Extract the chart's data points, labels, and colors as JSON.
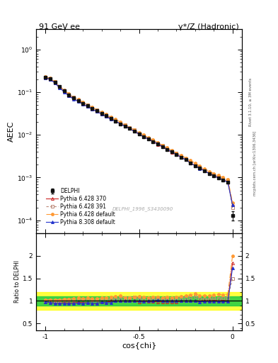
{
  "title_left": "91 GeV ee",
  "title_right": "γ*/Z (Hadronic)",
  "xlabel": "cos{chi}",
  "ylabel_main": "AEEC",
  "ylabel_ratio": "Ratio to DELPHI",
  "watermark": "DELPHI_1996_S3430090",
  "right_label_top": "Rivet 3.1.10, ≥ 3M events",
  "right_label_bot": "mcplots.cern.ch [arXiv:1306.3436]",
  "cos_chi": [
    -1.0,
    -0.975,
    -0.95,
    -0.925,
    -0.9,
    -0.875,
    -0.85,
    -0.825,
    -0.8,
    -0.775,
    -0.75,
    -0.725,
    -0.7,
    -0.675,
    -0.65,
    -0.625,
    -0.6,
    -0.575,
    -0.55,
    -0.525,
    -0.5,
    -0.475,
    -0.45,
    -0.425,
    -0.4,
    -0.375,
    -0.35,
    -0.325,
    -0.3,
    -0.275,
    -0.25,
    -0.225,
    -0.2,
    -0.175,
    -0.15,
    -0.125,
    -0.1,
    -0.075,
    -0.05,
    -0.025,
    0.0
  ],
  "delphi_y": [
    0.222,
    0.207,
    0.173,
    0.134,
    0.107,
    0.087,
    0.073,
    0.064,
    0.055,
    0.048,
    0.042,
    0.037,
    0.032,
    0.028,
    0.024,
    0.021,
    0.018,
    0.016,
    0.014,
    0.012,
    0.0105,
    0.0091,
    0.008,
    0.007,
    0.0061,
    0.0053,
    0.0046,
    0.004,
    0.0035,
    0.003,
    0.0026,
    0.0022,
    0.0019,
    0.00165,
    0.00145,
    0.00125,
    0.0011,
    0.00098,
    0.00088,
    0.00079,
    0.00013
  ],
  "delphi_err": [
    0.006,
    0.005,
    0.004,
    0.003,
    0.003,
    0.002,
    0.002,
    0.002,
    0.0015,
    0.0013,
    0.001,
    0.001,
    0.001,
    0.0008,
    0.0007,
    0.0006,
    0.0005,
    0.0004,
    0.0004,
    0.0003,
    0.0003,
    0.0003,
    0.0002,
    0.0002,
    0.0002,
    0.00015,
    0.00013,
    0.00011,
    0.0001,
    9e-05,
    8e-05,
    7e-05,
    6e-05,
    5e-05,
    5e-05,
    4e-05,
    4e-05,
    3e-05,
    3e-05,
    3e-05,
    3e-05
  ],
  "py6_370_y": [
    0.215,
    0.2,
    0.165,
    0.128,
    0.103,
    0.083,
    0.07,
    0.062,
    0.053,
    0.046,
    0.04,
    0.035,
    0.031,
    0.027,
    0.024,
    0.021,
    0.018,
    0.016,
    0.014,
    0.012,
    0.0103,
    0.009,
    0.0079,
    0.0069,
    0.006,
    0.0052,
    0.0045,
    0.0039,
    0.0034,
    0.003,
    0.0026,
    0.0022,
    0.0019,
    0.00166,
    0.00146,
    0.00126,
    0.00111,
    0.00099,
    0.00089,
    0.00079,
    0.00024
  ],
  "py6_391_y": [
    0.225,
    0.21,
    0.175,
    0.136,
    0.109,
    0.089,
    0.075,
    0.066,
    0.057,
    0.05,
    0.043,
    0.038,
    0.033,
    0.029,
    0.025,
    0.022,
    0.019,
    0.017,
    0.015,
    0.013,
    0.011,
    0.0096,
    0.0084,
    0.0073,
    0.0064,
    0.0056,
    0.0049,
    0.0042,
    0.0037,
    0.0032,
    0.0028,
    0.0024,
    0.0021,
    0.00175,
    0.0015,
    0.0013,
    0.00117,
    0.00104,
    0.00094,
    0.00085,
    0.000195
  ],
  "py6_def_y": [
    0.228,
    0.213,
    0.178,
    0.138,
    0.111,
    0.091,
    0.077,
    0.068,
    0.058,
    0.051,
    0.044,
    0.039,
    0.034,
    0.03,
    0.026,
    0.023,
    0.02,
    0.017,
    0.015,
    0.013,
    0.0115,
    0.0099,
    0.0086,
    0.0076,
    0.0066,
    0.0057,
    0.005,
    0.0043,
    0.0038,
    0.0033,
    0.0029,
    0.0025,
    0.0022,
    0.00185,
    0.00162,
    0.0014,
    0.00125,
    0.00112,
    0.001,
    0.00091,
    0.00026
  ],
  "py8_def_y": [
    0.218,
    0.2,
    0.164,
    0.127,
    0.101,
    0.082,
    0.069,
    0.061,
    0.052,
    0.046,
    0.04,
    0.035,
    0.031,
    0.027,
    0.023,
    0.021,
    0.018,
    0.016,
    0.014,
    0.012,
    0.0105,
    0.009,
    0.008,
    0.007,
    0.0062,
    0.0053,
    0.0046,
    0.004,
    0.0035,
    0.003,
    0.0026,
    0.0022,
    0.0019,
    0.00162,
    0.00143,
    0.00124,
    0.00109,
    0.00097,
    0.00087,
    0.00078,
    0.000225
  ],
  "colors": {
    "delphi": "#111111",
    "py6_370": "#cc2222",
    "py6_391": "#bb8877",
    "py6_def": "#ff9933",
    "py8_def": "#2233cc"
  },
  "ylim_main": [
    5e-05,
    3.0
  ],
  "ylim_ratio": [
    0.35,
    2.5
  ],
  "xlim": [
    -1.05,
    0.05
  ],
  "band_yellow": [
    0.8,
    1.2
  ],
  "band_green": [
    0.9,
    1.1
  ]
}
